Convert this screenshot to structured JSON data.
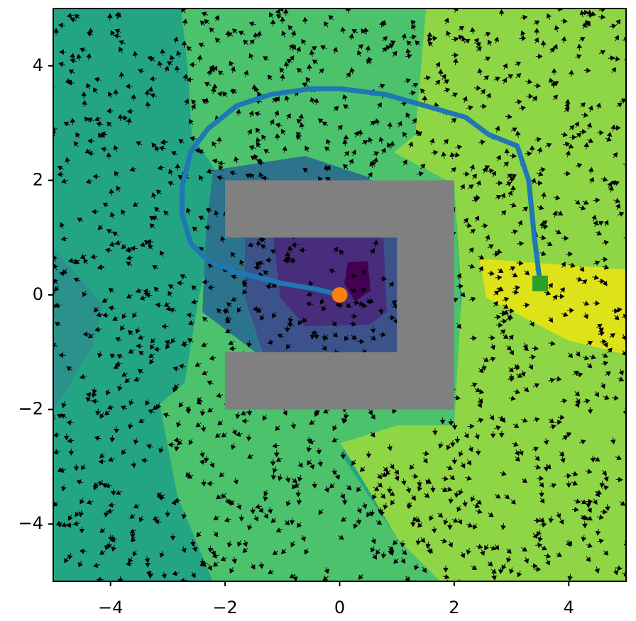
{
  "chart_data": {
    "type": "path",
    "xlim": [
      -5,
      5
    ],
    "ylim": [
      -5,
      5
    ],
    "xticks": [
      {
        "value": -4,
        "label": "−4"
      },
      {
        "value": -2,
        "label": "−2"
      },
      0,
      2,
      4
    ],
    "yticks": [
      {
        "value": -4,
        "label": "−4"
      },
      {
        "value": -2,
        "label": "−2"
      },
      0,
      2,
      4
    ],
    "path": {
      "color": "#1f77b4",
      "x": [
        0,
        -0.4,
        -1,
        -1.8,
        -2.3,
        -2.6,
        -2.75,
        -2.75,
        -2.6,
        -2.3,
        -1.8,
        -1.2,
        -0.5,
        0,
        0.8,
        1.5,
        2.2,
        2.6,
        3.1,
        3.3,
        3.4,
        3.5
      ],
      "y": [
        0,
        0.1,
        0.2,
        0.4,
        0.6,
        0.9,
        1.4,
        1.9,
        2.5,
        2.9,
        3.3,
        3.5,
        3.6,
        3.6,
        3.5,
        3.3,
        3.1,
        2.8,
        2.6,
        2,
        1,
        0.2
      ]
    },
    "start": {
      "x": 0,
      "y": 0,
      "color": "#ff7f0e"
    },
    "goal": {
      "x": 3.5,
      "y": 0.2,
      "color": "#2ca02c"
    },
    "obstacles": {
      "color": "#808080",
      "rects": [
        [
          -2,
          1,
          2,
          2
        ],
        [
          -2,
          -2,
          2,
          -1
        ],
        [
          1,
          -1,
          2,
          1
        ]
      ]
    }
  }
}
